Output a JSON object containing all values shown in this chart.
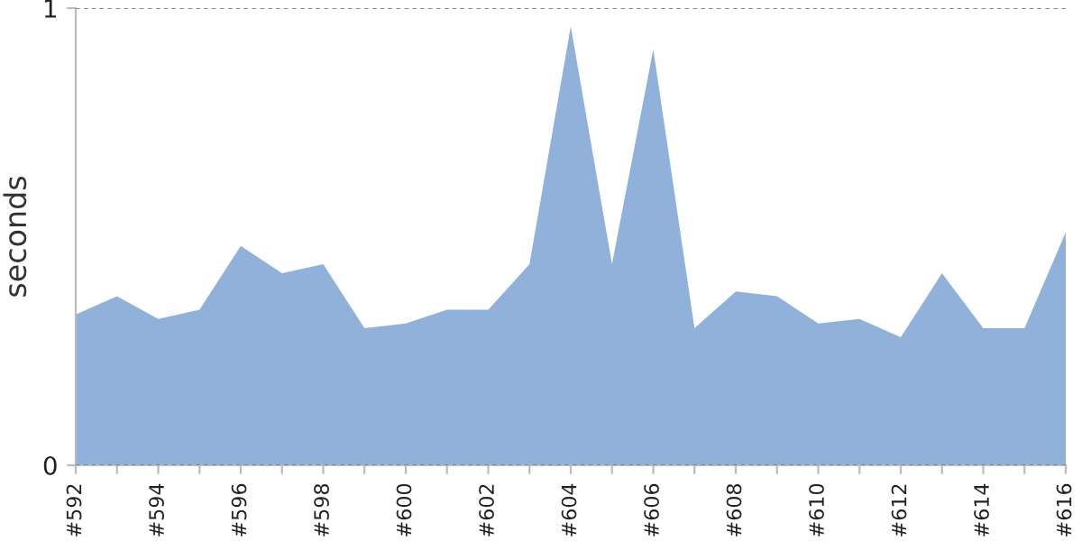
{
  "chart_data": {
    "type": "area",
    "ylabel": "seconds",
    "categories": [
      "#592",
      null,
      "#594",
      null,
      "#596",
      null,
      "#598",
      null,
      "#600",
      null,
      "#602",
      null,
      "#604",
      null,
      "#606",
      null,
      "#608",
      null,
      "#610",
      null,
      "#612",
      null,
      "#614",
      null,
      "#616"
    ],
    "series": [
      {
        "color": "#8fb1da",
        "values": [
          0.33,
          0.37,
          0.32,
          0.34,
          0.48,
          0.42,
          0.44,
          0.3,
          0.31,
          0.34,
          0.34,
          0.44,
          0.96,
          0.44,
          0.91,
          0.3,
          0.38,
          0.37,
          0.31,
          0.32,
          0.28,
          0.42,
          0.3,
          0.3,
          0.51
        ]
      }
    ],
    "ylim": [
      0,
      1
    ],
    "yticks": [
      0,
      1
    ],
    "grid": "y"
  }
}
